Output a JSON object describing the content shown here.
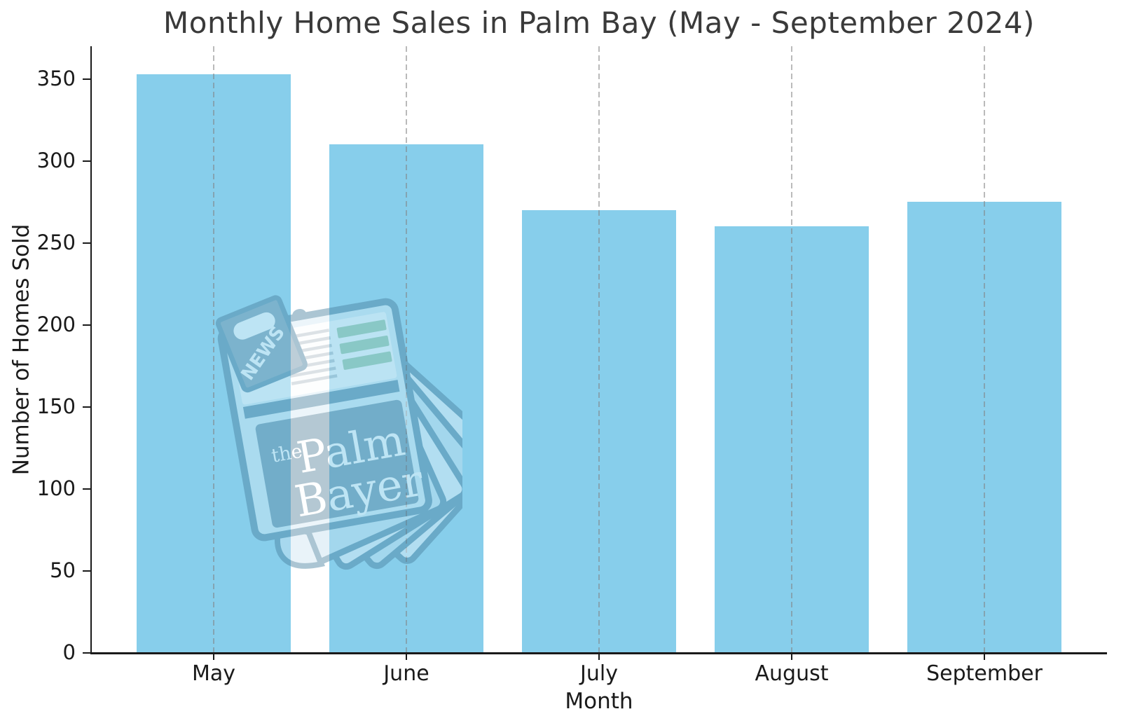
{
  "figure": {
    "title": "Monthly Home Sales in Palm Bay (May - September 2024)"
  },
  "chart_data": {
    "type": "bar",
    "title": "Monthly Home Sales in Palm Bay (May - September 2024)",
    "categories": [
      "May",
      "June",
      "July",
      "August",
      "September"
    ],
    "values": [
      353,
      310,
      270,
      260,
      275
    ],
    "xlabel": "Month",
    "ylabel": "Number of Homes Sold",
    "ylim": [
      0,
      370
    ],
    "yticks": [
      0,
      50,
      100,
      150,
      200,
      250,
      300,
      350
    ],
    "grid": "vertical-dashed-only",
    "legend": "none",
    "bar_color": "#87CEEB",
    "gridline_color": "#c9c9c9",
    "axis_color": "#1a1a1a",
    "title_color": "#3a3a3a"
  },
  "watermark": {
    "tag_label": "NEWS",
    "name_prefix": "the",
    "name_line1": "Palm",
    "name_line2": "Bayer",
    "outline_color": "#47809f",
    "page_color": "#d6ebf5",
    "panel_color": "#5a87a0",
    "accent_green": "#8cc19b"
  }
}
